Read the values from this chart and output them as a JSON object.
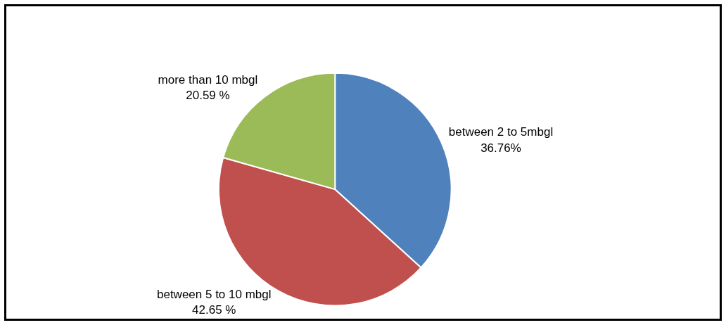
{
  "chart_data": {
    "type": "pie",
    "categories": [
      "between 2 to 5mbgl",
      "between 5 to 10 mbgl",
      "more than 10 mbgl"
    ],
    "values": [
      36.76,
      42.65,
      20.59
    ],
    "value_labels": [
      "36.76%",
      "42.65 %",
      "20.59 %"
    ],
    "colors": [
      "#4f81bd",
      "#c0504d",
      "#9bbb59"
    ],
    "legend": false
  }
}
